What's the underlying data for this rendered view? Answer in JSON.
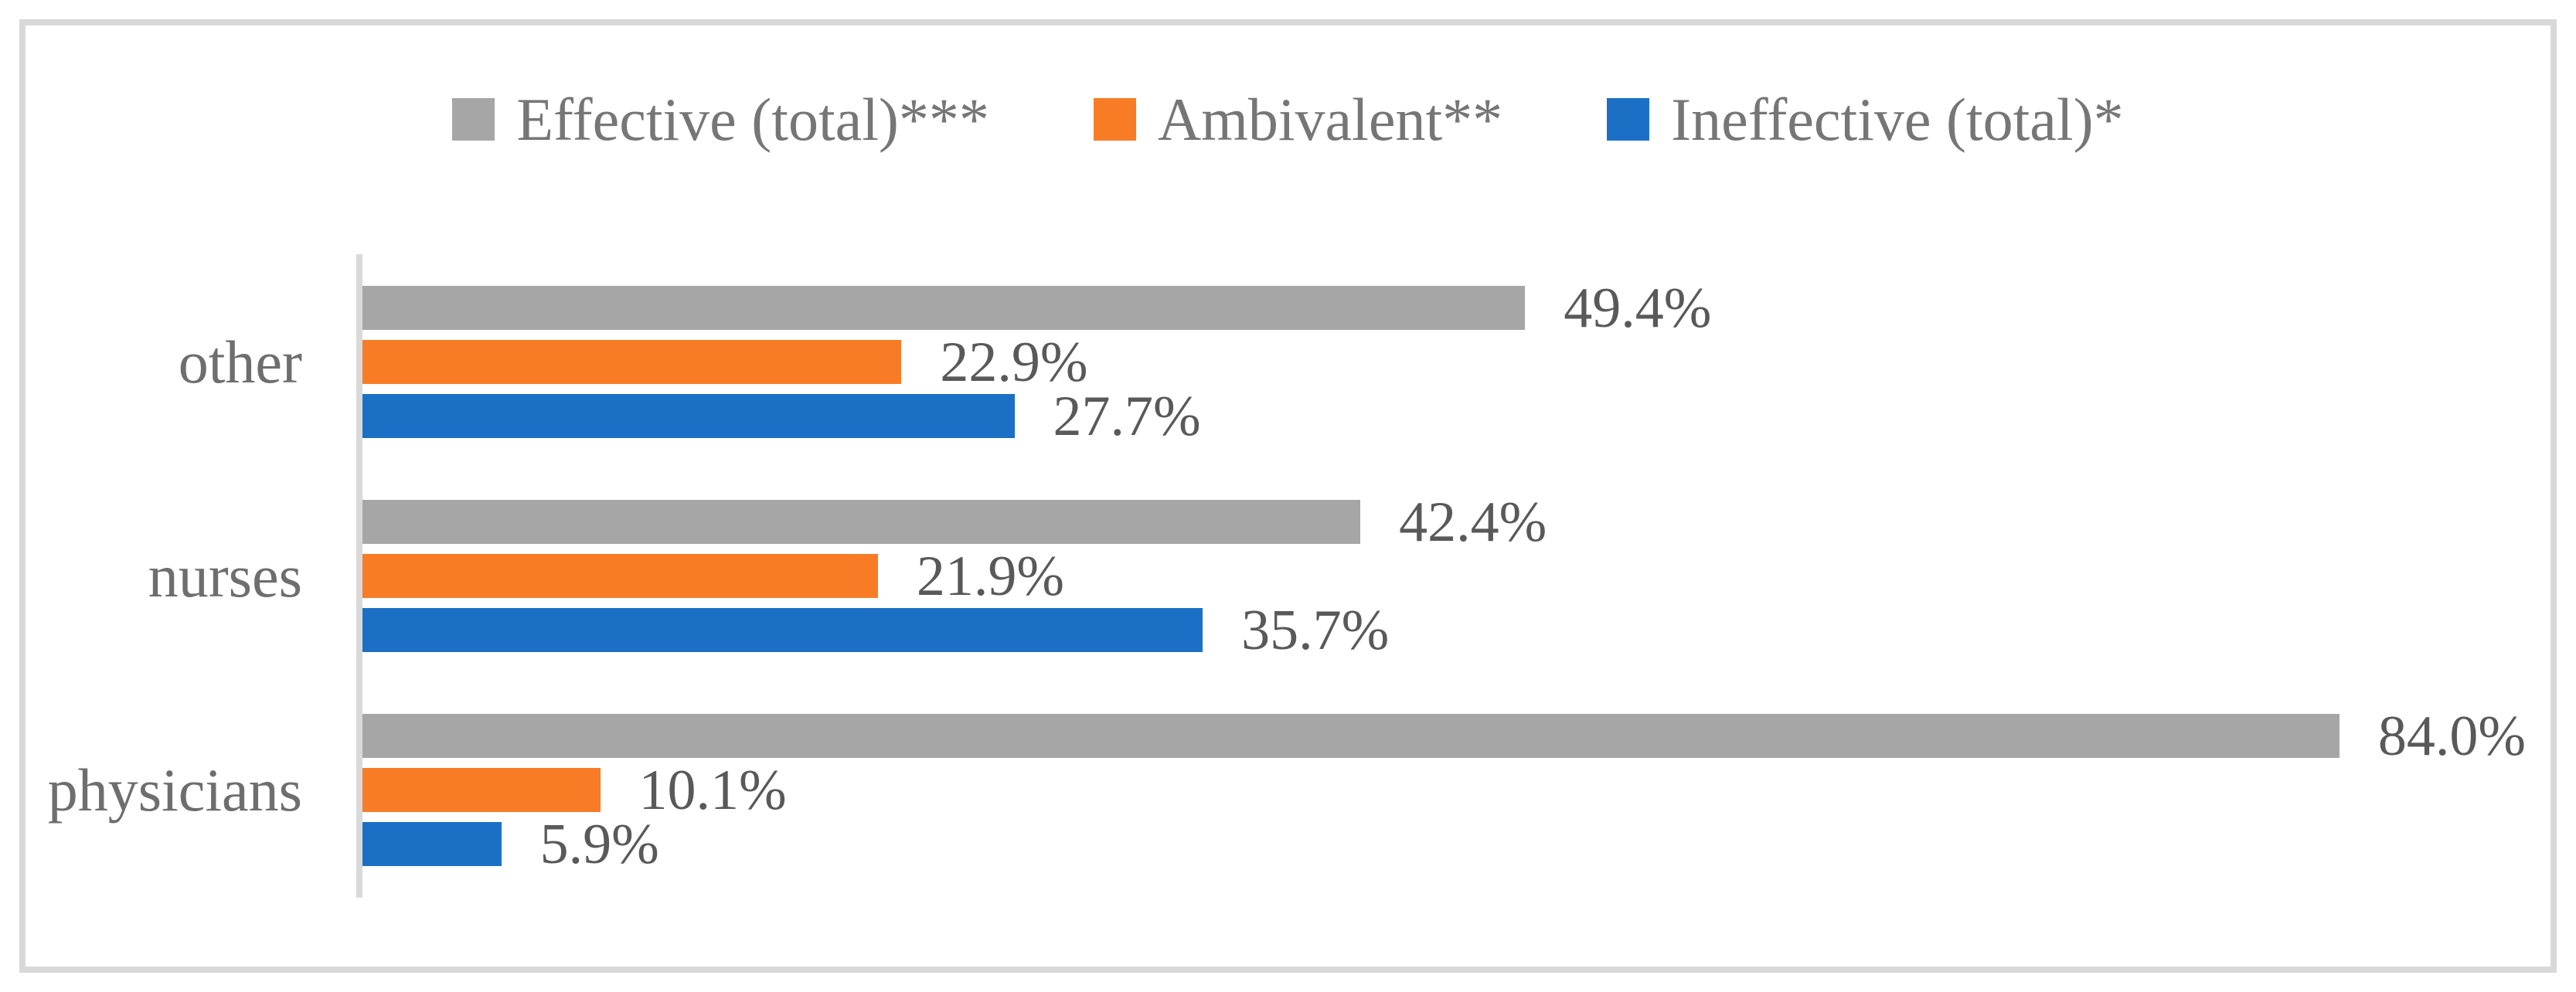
{
  "figure": {
    "background": "#FFFFFF",
    "frame_color": "#D9D9D9",
    "axis_line_color": "#D9D9D9",
    "legend_text_color": "#767676",
    "category_text_color": "#6E6E6E",
    "value_text_color": "#595959"
  },
  "chart_data": {
    "type": "bar",
    "orientation": "horizontal",
    "title": "",
    "xlabel": "",
    "ylabel": "",
    "categories": [
      "other",
      "nurses",
      "physicians"
    ],
    "series": [
      {
        "name": "Effective (total)***",
        "color": "#A6A6A6",
        "values": [
          49.4,
          42.4,
          84.0
        ],
        "labels": [
          "49.4%",
          "42.4%",
          "84.0%"
        ]
      },
      {
        "name": "Ambivalent**",
        "color": "#F87C26",
        "values": [
          22.9,
          21.9,
          10.1
        ],
        "labels": [
          "22.9%",
          "21.9%",
          "10.1%"
        ]
      },
      {
        "name": "Ineffective (total)*",
        "color": "#1B70C6",
        "values": [
          27.7,
          35.7,
          5.9
        ],
        "labels": [
          "27.7%",
          "35.7%",
          "5.9%"
        ]
      }
    ],
    "xlim": [
      0,
      93
    ],
    "legend_position": "top",
    "grid": false,
    "data_labels": true
  }
}
